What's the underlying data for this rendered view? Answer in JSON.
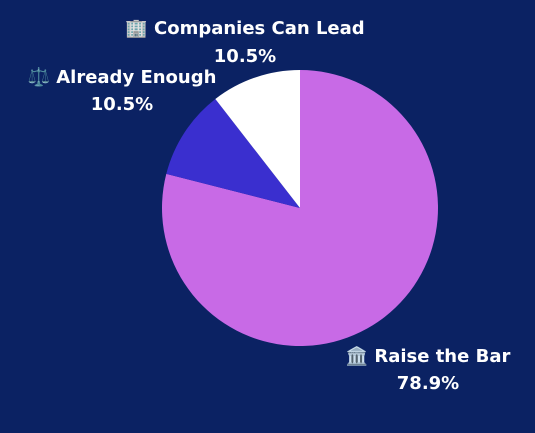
{
  "chart_data": {
    "type": "pie",
    "categories": [
      "🏛️ Raise the Bar",
      "⚖️ Already Enough",
      "🏢 Companies Can Lead"
    ],
    "values": [
      78.9,
      10.5,
      10.5
    ],
    "value_labels": [
      "78.9%",
      "10.5%",
      "10.5%"
    ],
    "colors": [
      "#c86ae6",
      "#3a2fcf",
      "#ffffff"
    ]
  }
}
